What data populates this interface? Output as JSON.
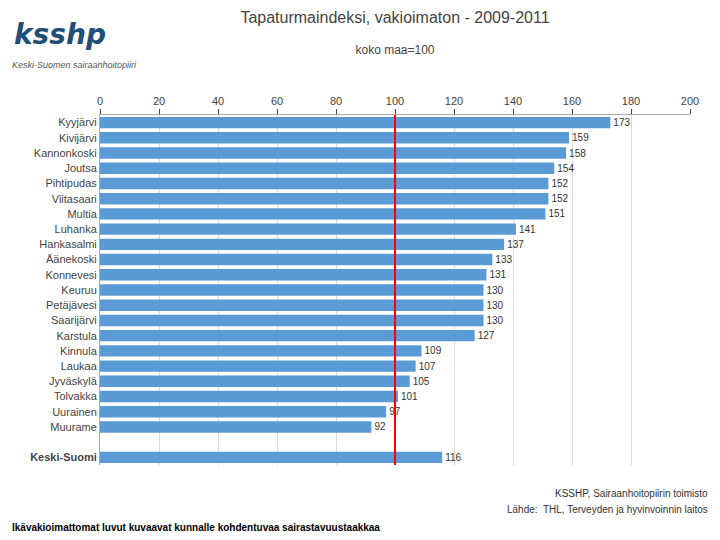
{
  "chart_data": {
    "type": "bar",
    "orientation": "horizontal",
    "title": "Tapaturmaindeksi, vakioimaton - 2009-2011",
    "subtitle": "koko maa=100",
    "categories": [
      "Keski-Suomi",
      null,
      "Muurame",
      "Uurainen",
      "Tolvakka",
      "Jyväskylä",
      "Laukaa",
      "Kinnula",
      "Karstula",
      "Saarijärvi",
      "Petäjävesi",
      "Keuruu",
      "Konnevesi",
      "Äänekoski",
      "Hankasalmi",
      "Luhanka",
      "Multia",
      "Viitasaari",
      "Pihtipudas",
      "Joutsa",
      "Kannonkoski",
      "Kivijärvi",
      "Kyyjärvi"
    ],
    "values": [
      116,
      null,
      92,
      97,
      101,
      105,
      107,
      109,
      127,
      130,
      130,
      130,
      131,
      133,
      137,
      141,
      151,
      152,
      152,
      154,
      158,
      159,
      173
    ],
    "color": "#5B9BD5",
    "xlim": [
      0,
      200
    ],
    "xticks": [
      0,
      20,
      40,
      60,
      80,
      100,
      120,
      140,
      160,
      180,
      200
    ],
    "grid": true,
    "data_labels": true,
    "reference_line": {
      "value": 100,
      "color": "#FF0000"
    },
    "annotations": [
      "Ikävakioimattomat luvut kuvaavat kunnalle kohdentuvaa sairastavuustaakkaa",
      "KSSHP, Sairaanhoitopiirin toimisto",
      "Lähde:  THL, Terveyden ja hyvinvoinnin laitos",
      "ksshp",
      "Keski-Suomen sairaanhoitopiiri"
    ]
  }
}
